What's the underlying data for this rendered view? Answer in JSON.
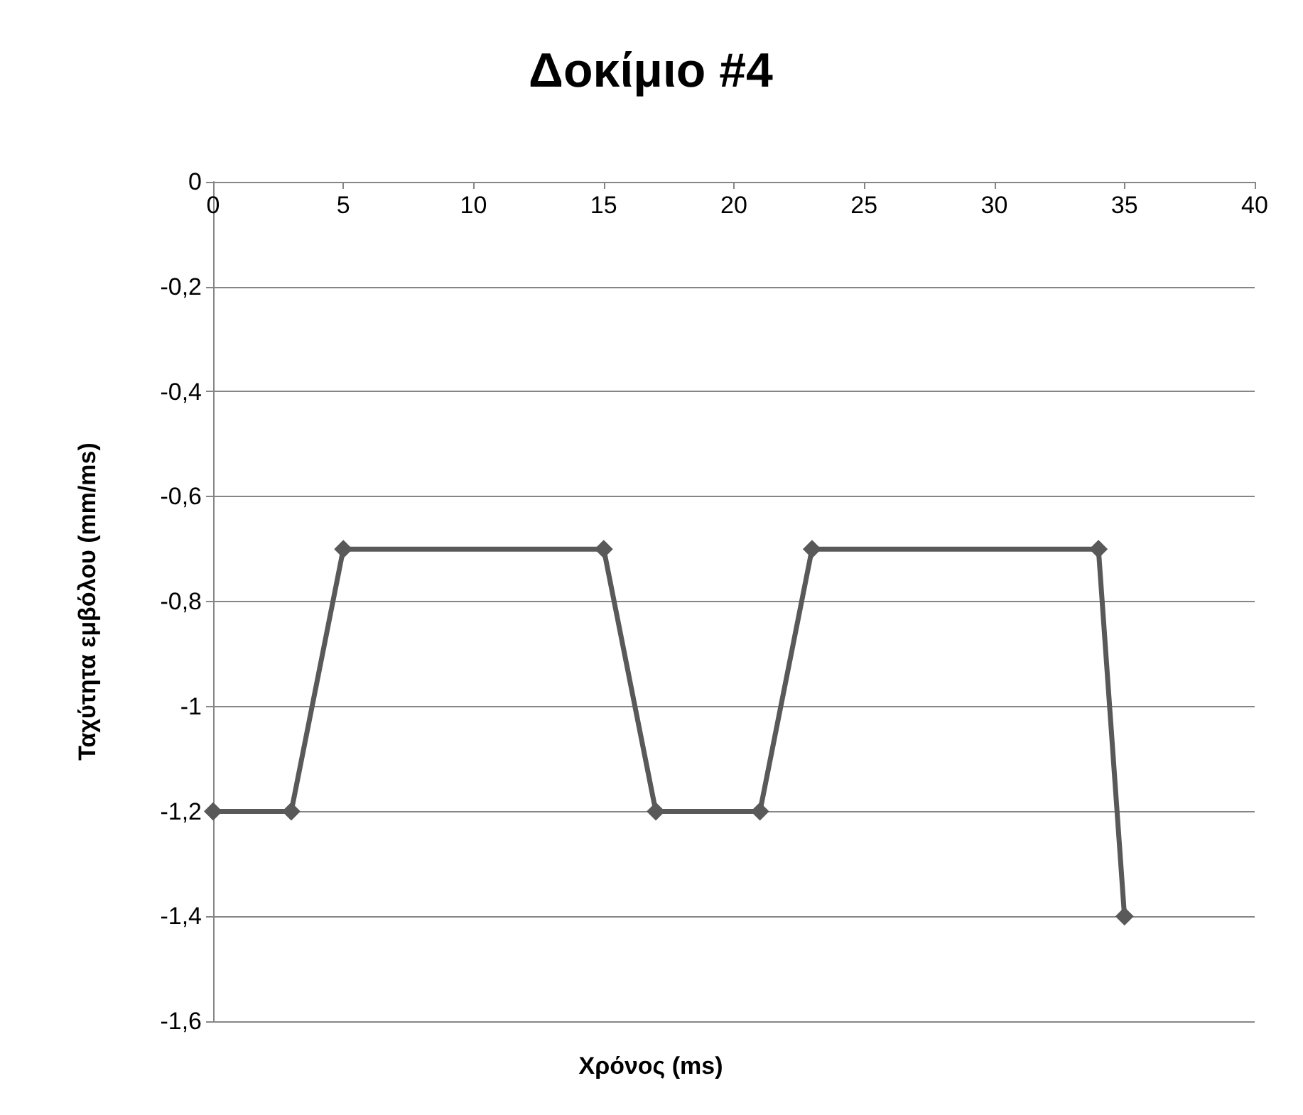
{
  "chart_data": {
    "type": "line",
    "title": "Δοκίμιο #4",
    "xlabel": "Χρόνος (ms)",
    "ylabel": "Ταχύτητα εμβόλου (mm/ms)",
    "x": [
      0,
      3,
      5,
      15,
      17,
      21,
      23,
      34,
      35
    ],
    "series": [
      {
        "color": "#595959",
        "values": [
          -1.2,
          -1.2,
          -0.7,
          -0.7,
          -1.2,
          -1.2,
          -0.7,
          -0.7,
          -1.4
        ]
      }
    ],
    "xlim": [
      0,
      40
    ],
    "xticks": [
      0,
      5,
      10,
      15,
      20,
      25,
      30,
      35,
      40
    ],
    "ylim": [
      -1.6,
      0
    ],
    "yticks": [
      {
        "value": -1.6,
        "label": "-1,6"
      },
      {
        "value": -1.4,
        "label": "-1,4"
      },
      {
        "value": -1.2,
        "label": "-1,2"
      },
      {
        "value": -1,
        "label": "-1"
      },
      {
        "value": -0.8,
        "label": "-0,8"
      },
      {
        "value": -0.6,
        "label": "-0,6"
      },
      {
        "value": -0.4,
        "label": "-0,4"
      },
      {
        "value": -0.2,
        "label": "-0,2"
      },
      {
        "value": 0,
        "label": "0"
      }
    ],
    "grid": "y",
    "marker": "diamond",
    "line_style": "solid"
  }
}
